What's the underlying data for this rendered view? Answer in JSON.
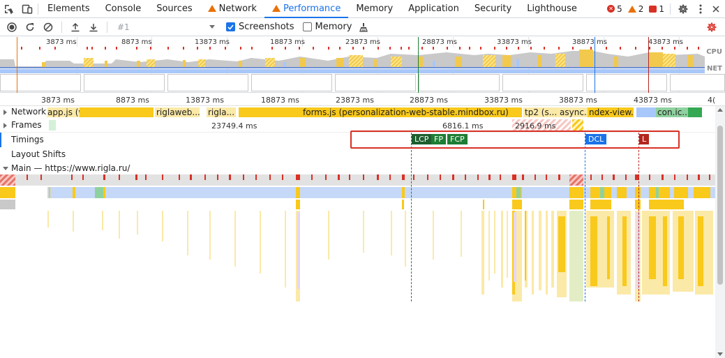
{
  "tabs": {
    "items": [
      {
        "label": "Elements",
        "active": false
      },
      {
        "label": "Console",
        "active": false
      },
      {
        "label": "Sources",
        "active": false
      },
      {
        "label": "Network",
        "active": false,
        "warning_icon": true
      },
      {
        "label": "Performance",
        "active": true,
        "warning_icon": true
      },
      {
        "label": "Memory",
        "active": false
      },
      {
        "label": "Application",
        "active": false
      },
      {
        "label": "Security",
        "active": false
      },
      {
        "label": "Lighthouse",
        "active": false
      }
    ],
    "errors": "5",
    "warnings": "2",
    "issues": "1"
  },
  "toolbar": {
    "profile_placeholder": "#1",
    "screenshots_label": "Screenshots",
    "screenshots_checked": true,
    "memory_label": "Memory",
    "memory_checked": false
  },
  "overview": {
    "ticks": [
      "3873 ms",
      "8873 ms",
      "13873 ms",
      "18873 ms",
      "23873 ms",
      "28873 ms",
      "33873 ms",
      "38873 ms",
      "43873 ms"
    ],
    "cpu_label": "CPU",
    "net_label": "NET"
  },
  "ruler": {
    "ticks": [
      "3873 ms",
      "8873 ms",
      "13873 ms",
      "18873 ms",
      "23873 ms",
      "28873 ms",
      "33873 ms",
      "38873 ms",
      "43873 ms",
      "4("
    ]
  },
  "tracks": {
    "network": {
      "label": "Network",
      "bars": [
        "app.js (www.rigla.ru)",
        "riglaweb...",
        "rigla...",
        "forms.js (personalization-web-stable.mindbox.ru)",
        "tp2 (s...",
        "async...",
        "ndex-view....",
        "con.ic..."
      ]
    },
    "frames": {
      "label": "Frames",
      "durations": [
        "23749.4 ms",
        "6816.1 ms",
        "2916.9 ms"
      ]
    },
    "timings": {
      "label": "Timings",
      "marks": [
        {
          "label": "LCP",
          "color": "#1e5e2e"
        },
        {
          "label": "FP",
          "color": "#1e7e34"
        },
        {
          "label": "FCP",
          "color": "#1e7e34"
        },
        {
          "label": "DCL",
          "color": "#1a73e8"
        },
        {
          "label": "L",
          "color": "#b3261e"
        }
      ]
    },
    "layout_shifts": {
      "label": "Layout Shifts"
    },
    "main": {
      "label": "Main — https://www.rigla.ru/"
    }
  }
}
